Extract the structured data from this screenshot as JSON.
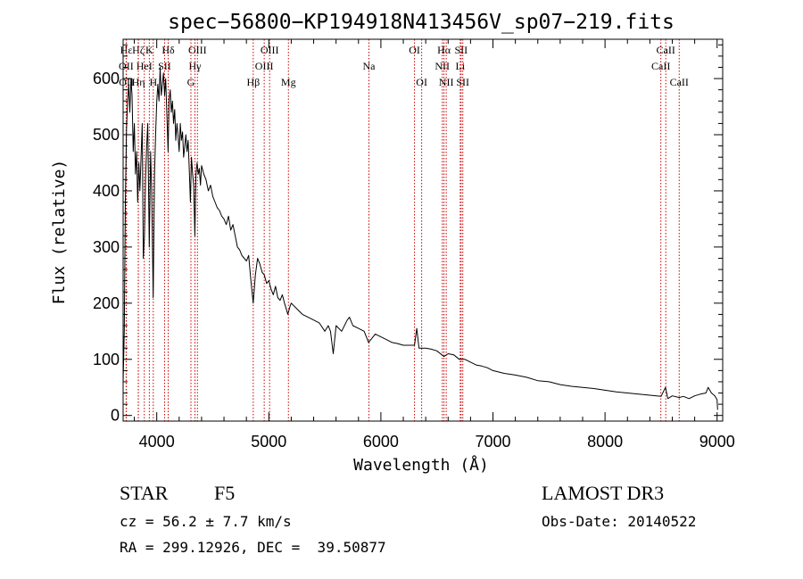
{
  "chart_data": {
    "type": "line",
    "title": "spec−56800−KP194918N413456V_sp07−219.fits",
    "xlabel": "Wavelength (Å)",
    "ylabel": "Flux (relative)",
    "xlim": [
      3700,
      9050
    ],
    "ylim": [
      -10,
      670
    ],
    "x_ticks": [
      4000,
      5000,
      6000,
      7000,
      8000,
      9000
    ],
    "y_ticks": [
      0,
      100,
      200,
      300,
      400,
      500,
      600
    ],
    "series": [
      {
        "name": "spectrum",
        "color": "#000000",
        "points": [
          [
            3700,
            60
          ],
          [
            3710,
            150
          ],
          [
            3720,
            380
          ],
          [
            3730,
            510
          ],
          [
            3740,
            560
          ],
          [
            3750,
            590
          ],
          [
            3760,
            540
          ],
          [
            3770,
            600
          ],
          [
            3780,
            570
          ],
          [
            3790,
            470
          ],
          [
            3800,
            520
          ],
          [
            3810,
            430
          ],
          [
            3820,
            470
          ],
          [
            3830,
            380
          ],
          [
            3840,
            450
          ],
          [
            3850,
            400
          ],
          [
            3860,
            460
          ],
          [
            3870,
            520
          ],
          [
            3880,
            280
          ],
          [
            3890,
            320
          ],
          [
            3900,
            420
          ],
          [
            3910,
            480
          ],
          [
            3920,
            520
          ],
          [
            3933,
            300
          ],
          [
            3945,
            470
          ],
          [
            3955,
            400
          ],
          [
            3968,
            210
          ],
          [
            3980,
            430
          ],
          [
            3990,
            500
          ],
          [
            4000,
            560
          ],
          [
            4010,
            590
          ],
          [
            4020,
            560
          ],
          [
            4030,
            620
          ],
          [
            4040,
            570
          ],
          [
            4050,
            590
          ],
          [
            4060,
            610
          ],
          [
            4070,
            570
          ],
          [
            4080,
            600
          ],
          [
            4101,
            470
          ],
          [
            4110,
            560
          ],
          [
            4120,
            580
          ],
          [
            4130,
            540
          ],
          [
            4140,
            560
          ],
          [
            4150,
            520
          ],
          [
            4160,
            545
          ],
          [
            4170,
            490
          ],
          [
            4180,
            520
          ],
          [
            4190,
            500
          ],
          [
            4200,
            470
          ],
          [
            4210,
            520
          ],
          [
            4220,
            490
          ],
          [
            4230,
            505
          ],
          [
            4240,
            460
          ],
          [
            4250,
            480
          ],
          [
            4260,
            500
          ],
          [
            4270,
            470
          ],
          [
            4280,
            490
          ],
          [
            4290,
            440
          ],
          [
            4300,
            380
          ],
          [
            4310,
            460
          ],
          [
            4320,
            430
          ],
          [
            4330,
            410
          ],
          [
            4340,
            320
          ],
          [
            4350,
            430
          ],
          [
            4360,
            450
          ],
          [
            4370,
            430
          ],
          [
            4380,
            440
          ],
          [
            4390,
            410
          ],
          [
            4400,
            445
          ],
          [
            4420,
            430
          ],
          [
            4440,
            420
          ],
          [
            4460,
            400
          ],
          [
            4480,
            410
          ],
          [
            4500,
            390
          ],
          [
            4520,
            380
          ],
          [
            4540,
            370
          ],
          [
            4560,
            365
          ],
          [
            4580,
            355
          ],
          [
            4600,
            350
          ],
          [
            4620,
            340
          ],
          [
            4640,
            355
          ],
          [
            4660,
            330
          ],
          [
            4680,
            340
          ],
          [
            4700,
            320
          ],
          [
            4720,
            300
          ],
          [
            4740,
            295
          ],
          [
            4760,
            285
          ],
          [
            4780,
            280
          ],
          [
            4800,
            275
          ],
          [
            4820,
            285
          ],
          [
            4840,
            240
          ],
          [
            4861,
            200
          ],
          [
            4880,
            250
          ],
          [
            4900,
            280
          ],
          [
            4920,
            270
          ],
          [
            4940,
            255
          ],
          [
            4960,
            250
          ],
          [
            4980,
            235
          ],
          [
            5000,
            240
          ],
          [
            5020,
            225
          ],
          [
            5040,
            215
          ],
          [
            5060,
            230
          ],
          [
            5080,
            210
          ],
          [
            5100,
            205
          ],
          [
            5120,
            215
          ],
          [
            5140,
            200
          ],
          [
            5170,
            180
          ],
          [
            5190,
            195
          ],
          [
            5200,
            200
          ],
          [
            5250,
            190
          ],
          [
            5300,
            180
          ],
          [
            5350,
            175
          ],
          [
            5400,
            170
          ],
          [
            5450,
            165
          ],
          [
            5500,
            150
          ],
          [
            5530,
            160
          ],
          [
            5550,
            150
          ],
          [
            5575,
            110
          ],
          [
            5600,
            160
          ],
          [
            5650,
            150
          ],
          [
            5700,
            170
          ],
          [
            5720,
            175
          ],
          [
            5750,
            160
          ],
          [
            5800,
            155
          ],
          [
            5850,
            150
          ],
          [
            5890,
            130
          ],
          [
            5950,
            145
          ],
          [
            6000,
            140
          ],
          [
            6050,
            135
          ],
          [
            6100,
            130
          ],
          [
            6150,
            128
          ],
          [
            6200,
            125
          ],
          [
            6250,
            125
          ],
          [
            6300,
            125
          ],
          [
            6320,
            155
          ],
          [
            6340,
            120
          ],
          [
            6400,
            120
          ],
          [
            6450,
            118
          ],
          [
            6500,
            115
          ],
          [
            6563,
            105
          ],
          [
            6600,
            110
          ],
          [
            6650,
            108
          ],
          [
            6700,
            100
          ],
          [
            6750,
            100
          ],
          [
            6800,
            95
          ],
          [
            6850,
            90
          ],
          [
            6900,
            88
          ],
          [
            6950,
            85
          ],
          [
            7000,
            80
          ],
          [
            7100,
            75
          ],
          [
            7200,
            72
          ],
          [
            7300,
            68
          ],
          [
            7400,
            62
          ],
          [
            7500,
            60
          ],
          [
            7600,
            55
          ],
          [
            7700,
            52
          ],
          [
            7800,
            50
          ],
          [
            7900,
            48
          ],
          [
            8000,
            45
          ],
          [
            8100,
            42
          ],
          [
            8200,
            40
          ],
          [
            8300,
            38
          ],
          [
            8400,
            36
          ],
          [
            8500,
            34
          ],
          [
            8540,
            50
          ],
          [
            8560,
            30
          ],
          [
            8600,
            35
          ],
          [
            8662,
            32
          ],
          [
            8700,
            34
          ],
          [
            8750,
            30
          ],
          [
            8800,
            35
          ],
          [
            8850,
            38
          ],
          [
            8900,
            40
          ],
          [
            8920,
            50
          ],
          [
            8950,
            40
          ],
          [
            8980,
            35
          ],
          [
            9000,
            28
          ],
          [
            9005,
            10
          ]
        ]
      }
    ],
    "line_markers": [
      {
        "label": "Hε",
        "wavelength": 3728,
        "row": 0
      },
      {
        "label": "OII",
        "wavelength": 3727,
        "row": 1
      },
      {
        "label": "OII",
        "wavelength": 3729,
        "row": 2
      },
      {
        "label": "Hζ",
        "wavelength": 3835,
        "row": 0
      },
      {
        "label": "HeI",
        "wavelength": 3889,
        "row": 1
      },
      {
        "label": "Hη",
        "wavelength": 3836,
        "row": 2
      },
      {
        "label": "K",
        "wavelength": 3934,
        "row": 0
      },
      {
        "label": "H",
        "wavelength": 3969,
        "row": 2
      },
      {
        "label": "Hδ",
        "wavelength": 4102,
        "row": 0
      },
      {
        "label": "SII",
        "wavelength": 4070,
        "row": 1
      },
      {
        "label": "OIII",
        "wavelength": 4363,
        "row": 0
      },
      {
        "label": "Hγ",
        "wavelength": 4341,
        "row": 1
      },
      {
        "label": "G",
        "wavelength": 4305,
        "row": 2
      },
      {
        "label": "Hβ",
        "wavelength": 4861,
        "row": 2
      },
      {
        "label": "OIII",
        "wavelength": 5007,
        "row": 0
      },
      {
        "label": "OIII",
        "wavelength": 4959,
        "row": 1
      },
      {
        "label": "Mg",
        "wavelength": 5175,
        "row": 2
      },
      {
        "label": "Na",
        "wavelength": 5893,
        "row": 1
      },
      {
        "label": "OI",
        "wavelength": 6300,
        "row": 0
      },
      {
        "label": "OI",
        "wavelength": 6364,
        "row": 2
      },
      {
        "label": "Hα",
        "wavelength": 6563,
        "row": 0
      },
      {
        "label": "NII",
        "wavelength": 6548,
        "row": 1
      },
      {
        "label": "NII",
        "wavelength": 6583,
        "row": 2
      },
      {
        "label": "SII",
        "wavelength": 6716,
        "row": 0
      },
      {
        "label": "Li",
        "wavelength": 6708,
        "row": 1
      },
      {
        "label": "SII",
        "wavelength": 6731,
        "row": 2
      },
      {
        "label": "CaII",
        "wavelength": 8542,
        "row": 0
      },
      {
        "label": "CaII",
        "wavelength": 8498,
        "row": 1
      },
      {
        "label": "CaII",
        "wavelength": 8662,
        "row": 2
      }
    ]
  },
  "info": {
    "object_class": "STAR",
    "subclass": "F5",
    "survey": "LAMOST DR3",
    "velocity": "cz = 56.2 ± 7.7 km/s",
    "obs_date": "Obs-Date: 20140522",
    "coordinates": "RA = 299.12926, DEC =  39.50877"
  }
}
